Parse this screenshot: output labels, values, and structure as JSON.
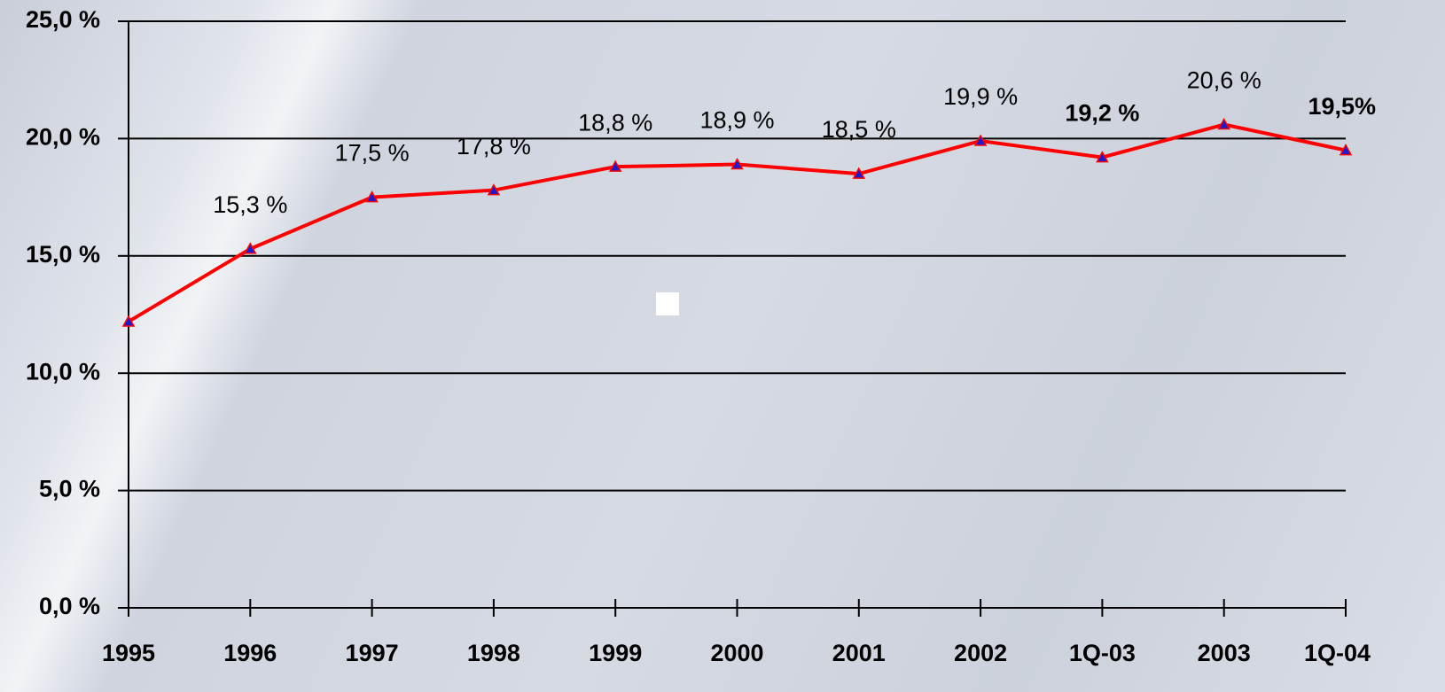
{
  "chart_data": {
    "type": "line",
    "categories": [
      "1995",
      "1996",
      "1997",
      "1998",
      "1999",
      "2000",
      "2001",
      "2002",
      "1Q-03",
      "2003",
      "1Q-04"
    ],
    "values": [
      12.2,
      15.3,
      17.5,
      17.8,
      18.8,
      18.9,
      18.5,
      19.9,
      19.2,
      20.6,
      19.5
    ],
    "value_labels": [
      null,
      "15,3 %",
      "17,5 %",
      "17,8 %",
      "18,8 %",
      "18,9 %",
      "18,5 %",
      "19,9 %",
      "19,2 %",
      "20,6 %",
      "19,5%"
    ],
    "value_label_bold": [
      false,
      false,
      false,
      false,
      false,
      false,
      false,
      false,
      true,
      false,
      true
    ],
    "color": "#ff0000",
    "marker_color": "#1a1ad0",
    "ylim": [
      0,
      25
    ],
    "yticks": [
      {
        "value": 0,
        "label": "0,0 %"
      },
      {
        "value": 5,
        "label": "5,0 %"
      },
      {
        "value": 10,
        "label": "10,0 %"
      },
      {
        "value": 15,
        "label": "15,0 %"
      },
      {
        "value": 20,
        "label": "20,0 %"
      },
      {
        "value": 25,
        "label": "25,0 %"
      }
    ],
    "grid": true
  }
}
